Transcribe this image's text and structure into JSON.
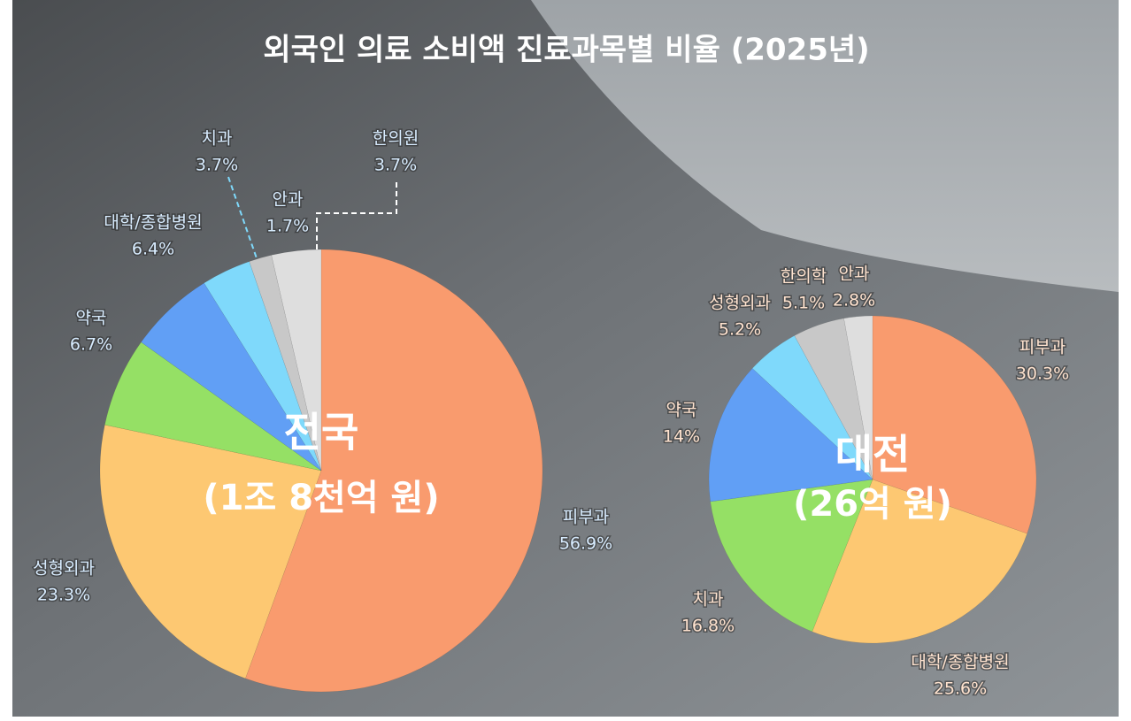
{
  "title": "외국인 의료 소비액 진료과목별 비율 (2025년)",
  "chart_data": [
    {
      "type": "pie",
      "center_title": "전국",
      "center_subtitle": "(1조 8천억 원)",
      "categories": [
        "피부과",
        "성형외과",
        "약국",
        "대학/종합병원",
        "치과",
        "안과",
        "한의원"
      ],
      "values": [
        56.9,
        23.3,
        6.7,
        6.4,
        3.7,
        1.7,
        3.7
      ],
      "value_labels": [
        "56.9%",
        "23.3%",
        "6.7%",
        "6.4%",
        "3.7%",
        "1.7%",
        "3.7%"
      ],
      "colors": [
        "#f99b6e",
        "#fdc872",
        "#95e065",
        "#619ff5",
        "#7fd9fb",
        "#c8c8c8",
        "#dedede"
      ]
    },
    {
      "type": "pie",
      "center_title": "대전",
      "center_subtitle": "(26억 원)",
      "categories": [
        "피부과",
        "대학/종합병원",
        "치과",
        "약국",
        "성형외과",
        "한의학",
        "안과"
      ],
      "values": [
        30.3,
        25.6,
        16.8,
        14,
        5.2,
        5.1,
        2.8
      ],
      "value_labels": [
        "30.3%",
        "25.6%",
        "16.8%",
        "14%",
        "5.2%",
        "5.1%",
        "2.8%"
      ],
      "colors": [
        "#f99b6e",
        "#fdc872",
        "#95e065",
        "#619ff5",
        "#7fd9fb",
        "#c8c8c8",
        "#dedede"
      ]
    }
  ]
}
